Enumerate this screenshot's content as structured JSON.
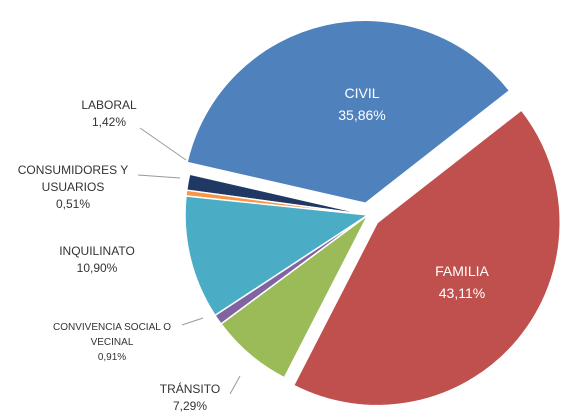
{
  "chart_data": {
    "type": "pie",
    "categories": [
      "FAMILIA",
      "TRÁNSITO",
      "CONVIVENCIA SOCIAL O VECINAL",
      "INQUILINATO",
      "CONSUMIDORES Y USUARIOS",
      "LABORAL",
      "CIVIL"
    ],
    "values": [
      43.11,
      7.29,
      0.91,
      10.9,
      0.51,
      1.42,
      35.86
    ],
    "value_labels": [
      "43,11%",
      "7,29%",
      "0,91%",
      "10,90%",
      "0,51%",
      "1,42%",
      "35,86%"
    ],
    "colors": [
      "#c0504d",
      "#9bbb59",
      "#8064a2",
      "#4bacc6",
      "#f79646",
      "#1f3864",
      "#4f81bd"
    ]
  }
}
